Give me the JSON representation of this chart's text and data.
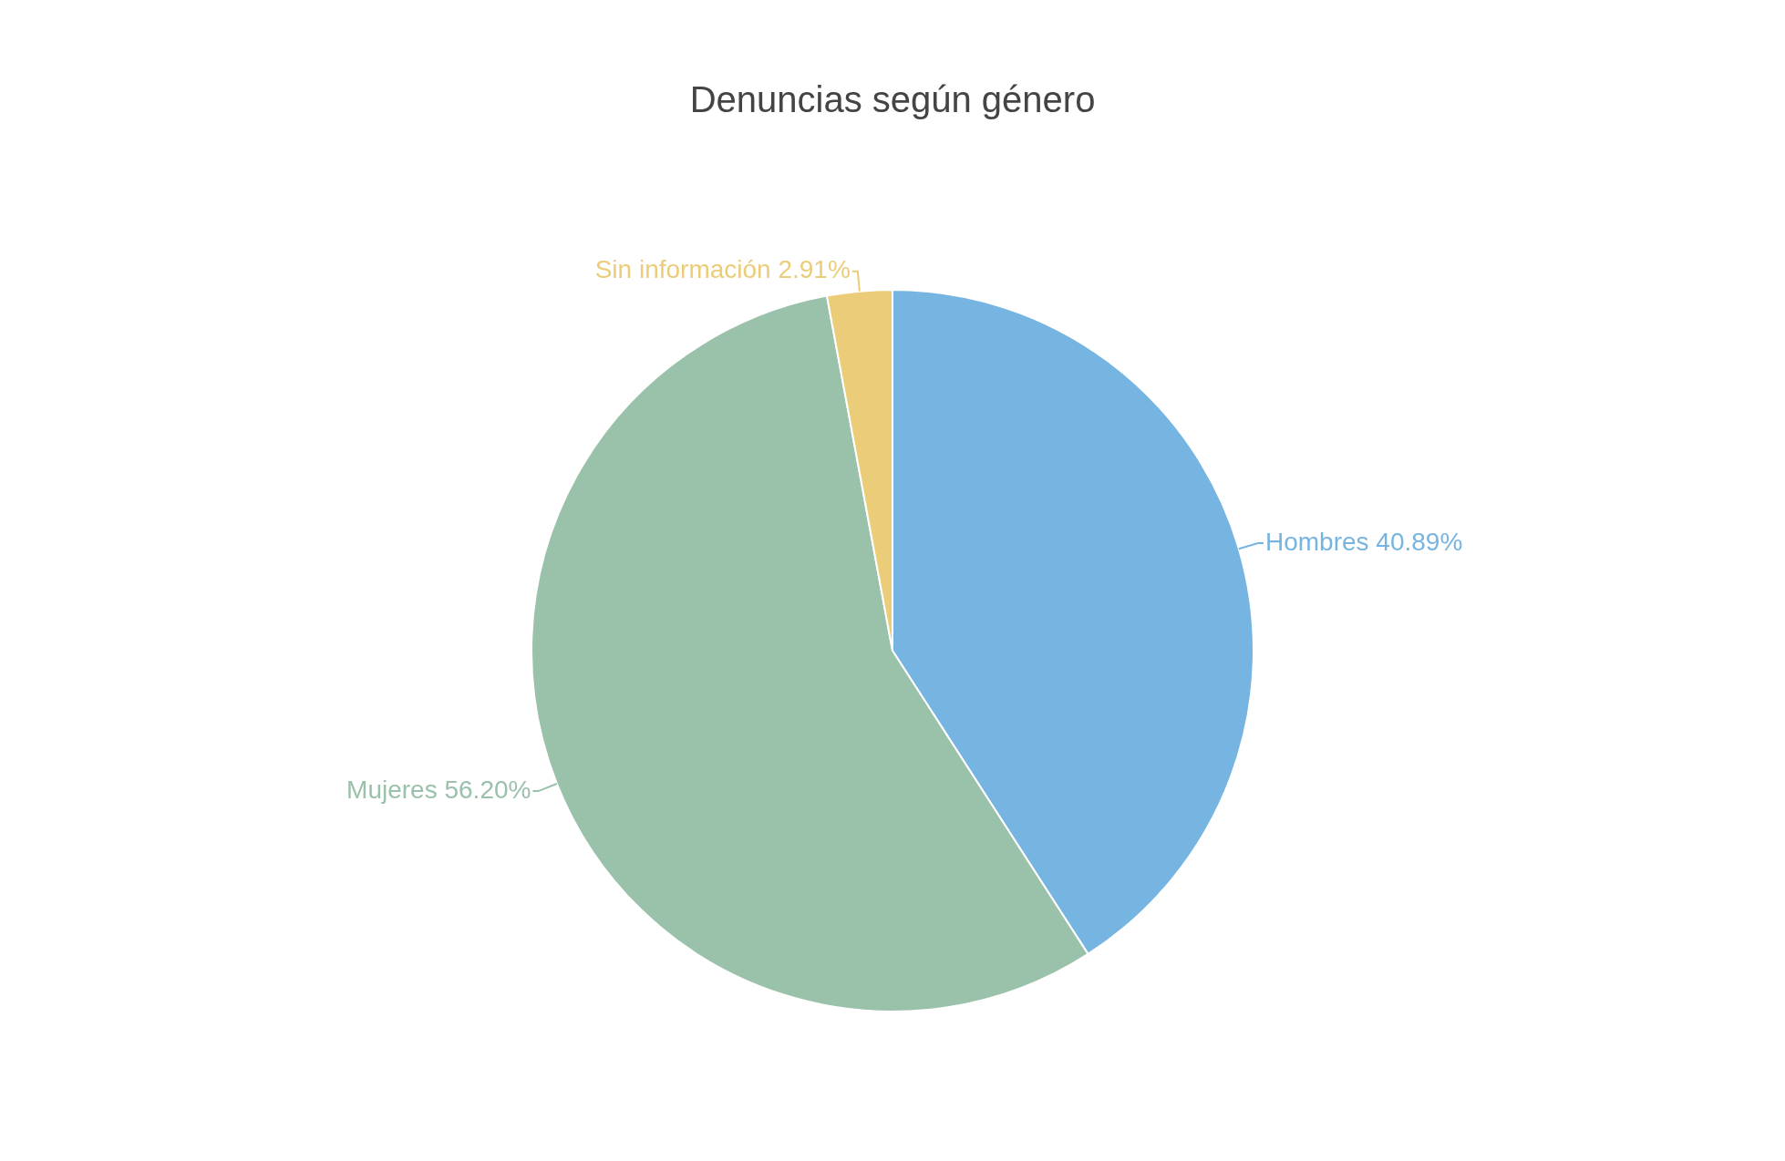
{
  "chart_data": {
    "type": "pie",
    "title": "Denuncias según género",
    "categories": [
      "Hombres",
      "Mujeres",
      "Sin información"
    ],
    "values": [
      40.89,
      56.2,
      2.91
    ],
    "value_labels": [
      "40.89%",
      "56.20%",
      "2.91%"
    ],
    "colors": [
      "#76b4e1",
      "#9ac1aa",
      "#ebcc78"
    ],
    "legend": false
  }
}
